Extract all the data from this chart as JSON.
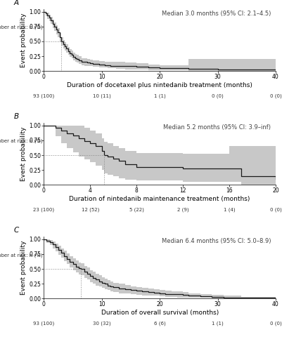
{
  "panels": [
    {
      "label": "A",
      "median": 3.0,
      "median_text": "Median 3.0 months (95% CI: 2.1–4.5)",
      "xlabel": "Duration of docetaxel plus nintedanib treatment (months)",
      "xlim": [
        0,
        40
      ],
      "xticks": [
        0,
        10,
        20,
        30,
        40
      ],
      "at_risk_label": "Number at risk: n (%)",
      "at_risk_x": [
        0,
        10,
        20,
        30,
        40
      ],
      "at_risk_values": [
        "93 (100)",
        "10 (11)",
        "1 (1)",
        "0 (0)",
        "0 (0)"
      ],
      "km_times": [
        0,
        0.3,
        0.6,
        0.9,
        1.2,
        1.5,
        1.8,
        2.1,
        2.4,
        2.7,
        3.0,
        3.3,
        3.6,
        3.9,
        4.2,
        4.5,
        4.8,
        5.1,
        5.4,
        5.7,
        6.0,
        6.5,
        7.0,
        7.5,
        8.0,
        8.5,
        9.0,
        9.5,
        10.0,
        10.5,
        11.0,
        11.5,
        12.0,
        12.5,
        13.0,
        14.0,
        15.0,
        16.0,
        18.0,
        20.0,
        25.0,
        30.0,
        40.0
      ],
      "km_surv": [
        1.0,
        0.97,
        0.94,
        0.9,
        0.85,
        0.8,
        0.75,
        0.7,
        0.65,
        0.57,
        0.5,
        0.45,
        0.42,
        0.38,
        0.33,
        0.3,
        0.27,
        0.24,
        0.22,
        0.2,
        0.18,
        0.16,
        0.15,
        0.14,
        0.13,
        0.12,
        0.12,
        0.11,
        0.11,
        0.1,
        0.1,
        0.09,
        0.09,
        0.09,
        0.09,
        0.08,
        0.08,
        0.07,
        0.06,
        0.05,
        0.04,
        0.03,
        0.03
      ],
      "km_upper": [
        1.0,
        1.0,
        0.98,
        0.95,
        0.91,
        0.87,
        0.82,
        0.77,
        0.72,
        0.64,
        0.57,
        0.52,
        0.49,
        0.45,
        0.4,
        0.37,
        0.34,
        0.31,
        0.29,
        0.27,
        0.25,
        0.22,
        0.21,
        0.2,
        0.19,
        0.18,
        0.18,
        0.17,
        0.17,
        0.16,
        0.16,
        0.15,
        0.15,
        0.15,
        0.15,
        0.14,
        0.14,
        0.13,
        0.11,
        0.1,
        0.2,
        0.2,
        0.2
      ],
      "km_lower": [
        1.0,
        0.93,
        0.88,
        0.84,
        0.79,
        0.73,
        0.68,
        0.62,
        0.57,
        0.49,
        0.43,
        0.38,
        0.35,
        0.31,
        0.27,
        0.24,
        0.21,
        0.18,
        0.16,
        0.14,
        0.12,
        0.1,
        0.09,
        0.09,
        0.08,
        0.07,
        0.07,
        0.06,
        0.06,
        0.06,
        0.05,
        0.05,
        0.05,
        0.04,
        0.04,
        0.03,
        0.03,
        0.02,
        0.01,
        0.01,
        0.0,
        0.0,
        0.0
      ]
    },
    {
      "label": "B",
      "median": 5.2,
      "median_text": "Median 5.2 months (95% CI: 3.9–inf)",
      "xlabel": "Duration of nintedanib maintenance treatment (months)",
      "xlim": [
        0,
        20
      ],
      "xticks": [
        0,
        4,
        8,
        12,
        16,
        20
      ],
      "at_risk_label": "Number at risk: n (%)",
      "at_risk_x": [
        0,
        4,
        8,
        12,
        16,
        20
      ],
      "at_risk_values": [
        "23 (100)",
        "12 (52)",
        "5 (22)",
        "2 (9)",
        "1 (4)",
        "0 (0)"
      ],
      "km_times": [
        0,
        0.5,
        1.0,
        1.5,
        2.0,
        2.5,
        3.0,
        3.5,
        4.0,
        4.5,
        5.0,
        5.2,
        5.5,
        6.0,
        6.5,
        7.0,
        7.5,
        8.0,
        9.0,
        10.0,
        11.0,
        12.0,
        13.0,
        14.0,
        15.0,
        16.0,
        17.0,
        20.0
      ],
      "km_surv": [
        1.0,
        1.0,
        0.96,
        0.91,
        0.87,
        0.83,
        0.78,
        0.74,
        0.7,
        0.65,
        0.57,
        0.5,
        0.48,
        0.44,
        0.4,
        0.35,
        0.35,
        0.3,
        0.3,
        0.3,
        0.3,
        0.28,
        0.28,
        0.28,
        0.28,
        0.28,
        0.15,
        0.1
      ],
      "km_upper": [
        1.0,
        1.0,
        1.0,
        1.0,
        1.0,
        1.0,
        1.0,
        0.96,
        0.91,
        0.87,
        0.78,
        0.72,
        0.7,
        0.66,
        0.62,
        0.57,
        0.57,
        0.54,
        0.54,
        0.54,
        0.54,
        0.52,
        0.52,
        0.52,
        0.52,
        0.65,
        0.65,
        0.65
      ],
      "km_lower": [
        1.0,
        1.0,
        0.82,
        0.7,
        0.62,
        0.55,
        0.48,
        0.43,
        0.38,
        0.32,
        0.25,
        0.19,
        0.17,
        0.14,
        0.11,
        0.09,
        0.09,
        0.07,
        0.07,
        0.07,
        0.07,
        0.05,
        0.05,
        0.05,
        0.05,
        0.05,
        0.0,
        0.0
      ]
    },
    {
      "label": "C",
      "median": 6.4,
      "median_text": "Median 6.4 months (95% CI: 5.0–8.9)",
      "xlabel": "Duration of overall survival (months)",
      "xlim": [
        0,
        40
      ],
      "xticks": [
        0,
        10,
        20,
        30,
        40
      ],
      "at_risk_label": "Number at risk: n (%)",
      "at_risk_x": [
        0,
        10,
        20,
        30,
        40
      ],
      "at_risk_values": [
        "93 (100)",
        "30 (32)",
        "6 (6)",
        "1 (1)",
        "0 (0)"
      ],
      "km_times": [
        0,
        0.5,
        1.0,
        1.5,
        2.0,
        2.5,
        3.0,
        3.5,
        4.0,
        4.5,
        5.0,
        5.5,
        6.0,
        6.4,
        7.0,
        7.5,
        8.0,
        8.5,
        9.0,
        9.5,
        10.0,
        10.5,
        11.0,
        11.5,
        12.0,
        13.0,
        14.0,
        15.0,
        16.0,
        17.0,
        18.0,
        19.0,
        20.0,
        21.0,
        22.0,
        23.0,
        24.0,
        25.0,
        26.0,
        27.0,
        28.0,
        29.0,
        30.0,
        31.0,
        32.0,
        34.0,
        36.0,
        40.0
      ],
      "km_surv": [
        1.0,
        0.98,
        0.95,
        0.91,
        0.87,
        0.82,
        0.77,
        0.72,
        0.67,
        0.62,
        0.58,
        0.54,
        0.51,
        0.5,
        0.45,
        0.42,
        0.38,
        0.35,
        0.32,
        0.29,
        0.27,
        0.25,
        0.22,
        0.2,
        0.19,
        0.17,
        0.16,
        0.14,
        0.13,
        0.12,
        0.11,
        0.1,
        0.09,
        0.08,
        0.07,
        0.07,
        0.06,
        0.05,
        0.05,
        0.04,
        0.04,
        0.03,
        0.03,
        0.02,
        0.02,
        0.01,
        0.01,
        0.0
      ],
      "km_upper": [
        1.0,
        1.0,
        0.99,
        0.96,
        0.93,
        0.89,
        0.85,
        0.81,
        0.76,
        0.72,
        0.68,
        0.64,
        0.61,
        0.59,
        0.55,
        0.52,
        0.48,
        0.45,
        0.42,
        0.39,
        0.36,
        0.34,
        0.31,
        0.29,
        0.27,
        0.25,
        0.23,
        0.21,
        0.19,
        0.18,
        0.17,
        0.16,
        0.15,
        0.13,
        0.12,
        0.12,
        0.11,
        0.09,
        0.09,
        0.08,
        0.08,
        0.06,
        0.06,
        0.05,
        0.05,
        0.03,
        0.03,
        0.1
      ],
      "km_lower": [
        1.0,
        0.94,
        0.9,
        0.85,
        0.8,
        0.74,
        0.69,
        0.63,
        0.58,
        0.52,
        0.48,
        0.44,
        0.41,
        0.39,
        0.35,
        0.32,
        0.28,
        0.25,
        0.22,
        0.2,
        0.18,
        0.16,
        0.14,
        0.12,
        0.11,
        0.09,
        0.09,
        0.07,
        0.06,
        0.05,
        0.05,
        0.05,
        0.04,
        0.03,
        0.03,
        0.02,
        0.02,
        0.01,
        0.01,
        0.01,
        0.01,
        0.0,
        0.0,
        0.0,
        0.0,
        0.0,
        0.0,
        0.0
      ]
    }
  ],
  "ylabel": "Event probability",
  "yticks": [
    0.0,
    0.25,
    0.5,
    0.75,
    1.0
  ],
  "ylim": [
    0,
    1.05
  ],
  "km_color": "#1a1a1a",
  "ci_color": "#c8c8c8",
  "median_line_color": "#888888",
  "at_risk_fontsize": 5.0,
  "label_fontsize": 6.5,
  "tick_fontsize": 5.5,
  "annotation_fontsize": 6.0,
  "panel_label_fontsize": 7.5
}
